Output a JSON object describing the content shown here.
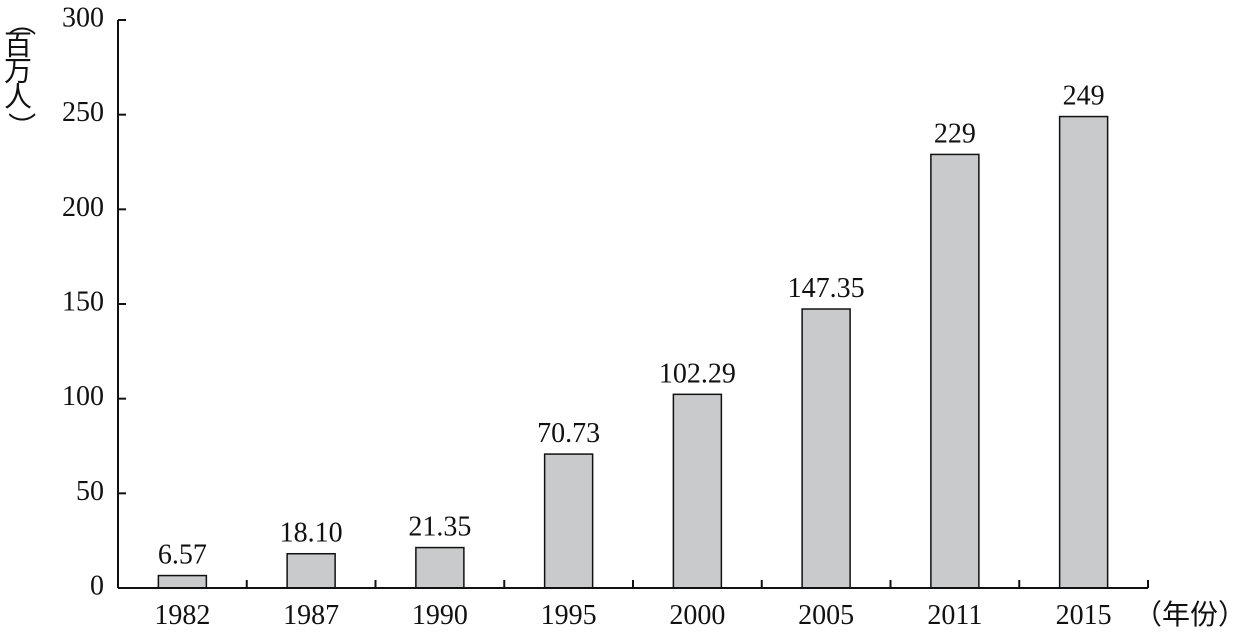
{
  "chart_data": {
    "type": "bar",
    "title": "",
    "xlabel": "（年份）",
    "ylabel": "（百万人）",
    "ylabel_chars": [
      "（",
      "百",
      "万",
      "人",
      "）"
    ],
    "categories": [
      "1982",
      "1987",
      "1990",
      "1995",
      "2000",
      "2005",
      "2011",
      "2015"
    ],
    "values": [
      6.57,
      18.1,
      21.35,
      70.73,
      102.29,
      147.35,
      229,
      249
    ],
    "data_labels": [
      "6.57",
      "18.10",
      "21.35",
      "70.73",
      "102.29",
      "147.35",
      "229",
      "249"
    ],
    "ylim": [
      0,
      300
    ],
    "yticks": [
      0,
      50,
      100,
      150,
      200,
      250,
      300
    ],
    "ytick_labels": [
      "0",
      "50",
      "100",
      "150",
      "200",
      "250",
      "300"
    ],
    "grid": false,
    "colors": {
      "bar_fill": "#c8cacc",
      "bar_stroke": "#111111",
      "axis": "#111111",
      "text": "#111111"
    }
  }
}
